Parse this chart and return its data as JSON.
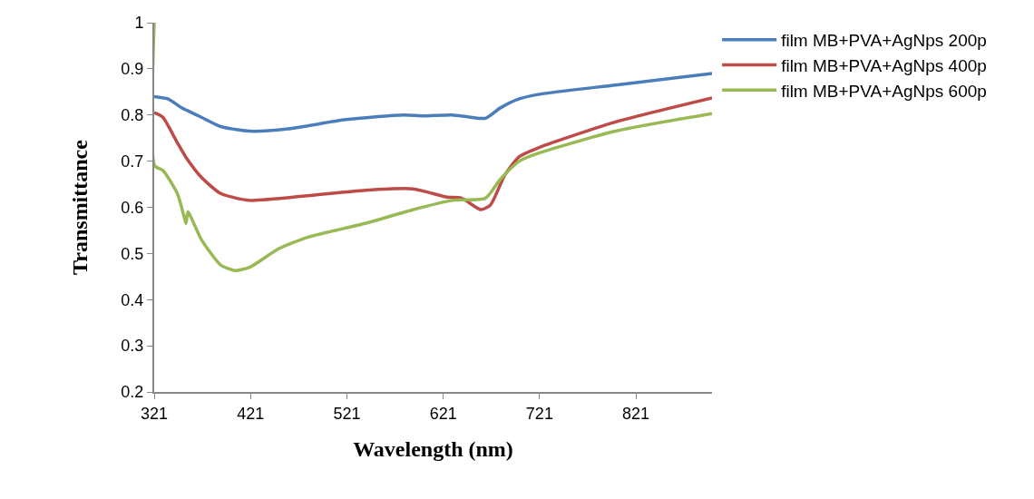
{
  "chart_data": {
    "type": "line",
    "xlabel": "Wavelength (nm)",
    "ylabel": "Transmittance",
    "xlim": [
      321,
      900
    ],
    "xticks": [
      321,
      421,
      521,
      621,
      721,
      821
    ],
    "ylim": [
      0.2,
      1
    ],
    "yticks": [
      0.2,
      0.3,
      0.4,
      0.5,
      0.6,
      0.7,
      0.8,
      0.9,
      1
    ],
    "grid": false,
    "legend": "right",
    "marker": "none",
    "line_style": "solid",
    "series": [
      {
        "name": "film MB+PVA+AgNps 200p",
        "color": "#4a7ebb",
        "x": [
          321,
          335,
          350,
          355,
          370,
          390,
          420,
          460,
          520,
          580,
          600,
          630,
          650,
          665,
          680,
          700,
          721,
          800,
          900
        ],
        "values": [
          0.84,
          0.835,
          0.815,
          0.81,
          0.795,
          0.775,
          0.765,
          0.77,
          0.79,
          0.8,
          0.798,
          0.8,
          0.795,
          0.793,
          0.815,
          0.835,
          0.845,
          0.865,
          0.89
        ]
      },
      {
        "name": "film MB+PVA+AgNps 400p",
        "color": "#be4b48",
        "x": [
          321,
          330,
          345,
          355,
          370,
          390,
          420,
          480,
          540,
          590,
          610,
          625,
          640,
          660,
          670,
          685,
          700,
          721,
          800,
          900
        ],
        "values": [
          0.805,
          0.795,
          0.74,
          0.705,
          0.665,
          0.63,
          0.615,
          0.625,
          0.637,
          0.64,
          0.63,
          0.622,
          0.62,
          0.595,
          0.605,
          0.67,
          0.71,
          0.73,
          0.785,
          0.837
        ]
      },
      {
        "name": "film MB+PVA+AgNps 600p",
        "color": "#98b954",
        "x": [
          321,
          321.5,
          330,
          345,
          352,
          354,
          356,
          370,
          390,
          405,
          420,
          450,
          480,
          540,
          590,
          630,
          665,
          680,
          700,
          721,
          800,
          900
        ],
        "values": [
          1.0,
          0.69,
          0.68,
          0.63,
          0.58,
          0.565,
          0.59,
          0.53,
          0.475,
          0.463,
          0.47,
          0.51,
          0.535,
          0.565,
          0.595,
          0.615,
          0.62,
          0.66,
          0.7,
          0.718,
          0.765,
          0.803
        ]
      }
    ]
  }
}
